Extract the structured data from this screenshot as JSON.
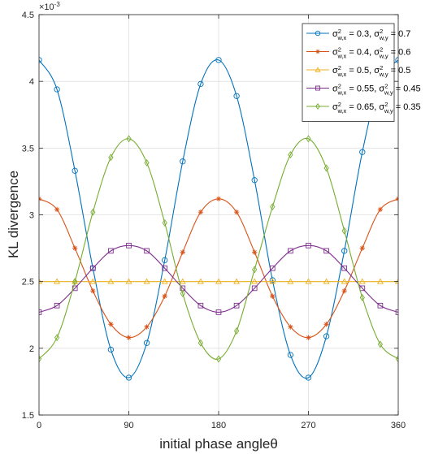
{
  "chart_data": {
    "type": "line",
    "title": "",
    "xlabel": "initial phase angleθ",
    "ylabel": "KL divergence",
    "xlim": [
      0,
      360
    ],
    "ylim": [
      1.5,
      4.5
    ],
    "y_multiplier": "×10",
    "y_multiplier_exp": "-3",
    "x_ticks": [
      "0",
      "90",
      "180",
      "270",
      "360"
    ],
    "y_ticks": [
      "1.5",
      "2",
      "2.5",
      "3",
      "3.5",
      "4",
      "4.5"
    ],
    "grid": true,
    "legend_position": "top-right",
    "marker_x": [
      0,
      18,
      36,
      54,
      72,
      90,
      108,
      126,
      144,
      162,
      180,
      198,
      216,
      234,
      252,
      270,
      288,
      306,
      324,
      342,
      360
    ],
    "series": [
      {
        "name": "σ²w,x = 0.3, σ²w,y = 0.7",
        "legend": {
          "sx": "0.3",
          "sy": "0.7"
        },
        "color": "#0072BD",
        "marker": "circle",
        "x": [
          0,
          18,
          36,
          54,
          72,
          90,
          108,
          126,
          144,
          162,
          180,
          198,
          216,
          234,
          252,
          270,
          288,
          306,
          324,
          342,
          360
        ],
        "values": [
          4.16,
          3.94,
          3.33,
          2.6,
          1.99,
          1.78,
          2.04,
          2.66,
          3.4,
          3.98,
          4.16,
          3.89,
          3.26,
          2.51,
          1.95,
          1.78,
          2.09,
          2.73,
          3.47,
          4.01,
          4.16
        ]
      },
      {
        "name": "σ²w,x = 0.4, σ²w,y = 0.6",
        "legend": {
          "sx": "0.4",
          "sy": "0.6"
        },
        "color": "#D95319",
        "marker": "asterisk",
        "x": [
          0,
          18,
          36,
          54,
          72,
          90,
          108,
          126,
          144,
          162,
          180,
          198,
          216,
          234,
          252,
          270,
          288,
          306,
          324,
          342,
          360
        ],
        "values": [
          3.12,
          3.04,
          2.75,
          2.43,
          2.18,
          2.08,
          2.16,
          2.39,
          2.72,
          3.02,
          3.12,
          3.02,
          2.72,
          2.39,
          2.16,
          2.08,
          2.18,
          2.43,
          2.75,
          3.04,
          3.12
        ]
      },
      {
        "name": "σ²w,x = 0.5, σ²w,y = 0.5",
        "legend": {
          "sx": "0.5",
          "sy": "0.5"
        },
        "color": "#EDB120",
        "marker": "triangle",
        "x": [
          0,
          18,
          36,
          54,
          72,
          90,
          108,
          126,
          144,
          162,
          180,
          198,
          216,
          234,
          252,
          270,
          288,
          306,
          324,
          342,
          360
        ],
        "values": [
          2.5,
          2.5,
          2.5,
          2.5,
          2.5,
          2.5,
          2.5,
          2.5,
          2.5,
          2.5,
          2.5,
          2.5,
          2.5,
          2.5,
          2.5,
          2.5,
          2.5,
          2.5,
          2.5,
          2.5,
          2.5
        ]
      },
      {
        "name": "σ²w,x = 0.55, σ²w,y = 0.45",
        "legend": {
          "sx": "0.55",
          "sy": "0.45"
        },
        "color": "#7E2F8E",
        "marker": "square",
        "x": [
          0,
          18,
          36,
          54,
          72,
          90,
          108,
          126,
          144,
          162,
          180,
          198,
          216,
          234,
          252,
          270,
          288,
          306,
          324,
          342,
          360
        ],
        "values": [
          2.27,
          2.32,
          2.45,
          2.6,
          2.73,
          2.77,
          2.73,
          2.6,
          2.45,
          2.32,
          2.27,
          2.32,
          2.45,
          2.6,
          2.73,
          2.77,
          2.73,
          2.6,
          2.45,
          2.32,
          2.27
        ]
      },
      {
        "name": "σ²w,x = 0.65, σ²w,y = 0.35",
        "legend": {
          "sx": "0.65",
          "sy": "0.35"
        },
        "color": "#77AC30",
        "marker": "diamond",
        "x": [
          0,
          18,
          36,
          54,
          72,
          90,
          108,
          126,
          144,
          162,
          180,
          198,
          216,
          234,
          252,
          270,
          288,
          306,
          324,
          342,
          360
        ],
        "values": [
          1.92,
          2.08,
          2.5,
          3.02,
          3.43,
          3.57,
          3.39,
          2.94,
          2.41,
          2.04,
          1.92,
          2.13,
          2.59,
          3.06,
          3.45,
          3.57,
          3.35,
          2.88,
          2.38,
          2.03,
          1.92
        ]
      }
    ]
  }
}
